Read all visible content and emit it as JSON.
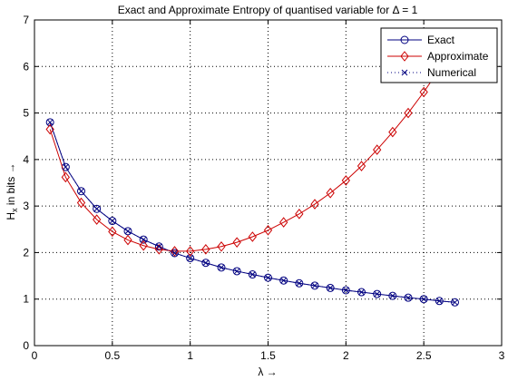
{
  "chart_data": {
    "type": "line",
    "title": "Exact and Approximate Entropy of quantised variable for Δ = 1",
    "xlabel": "λ →",
    "ylabel": "H_x in bits →",
    "ylabel_parts": {
      "main": "H",
      "sub": "x",
      "rest": " in bits →"
    },
    "xlim": [
      0,
      3
    ],
    "ylim": [
      0,
      7
    ],
    "xticks": [
      0,
      0.5,
      1,
      1.5,
      2,
      2.5,
      3
    ],
    "xtick_labels": [
      "0",
      "0.5",
      "1",
      "1.5",
      "2",
      "2.5",
      "3"
    ],
    "yticks": [
      0,
      1,
      2,
      3,
      4,
      5,
      6,
      7
    ],
    "ytick_labels": [
      "0",
      "1",
      "2",
      "3",
      "4",
      "5",
      "6",
      "7"
    ],
    "grid": true,
    "legend_position": "top-right",
    "x": [
      0.1,
      0.2,
      0.3,
      0.4,
      0.5,
      0.6,
      0.7,
      0.8,
      0.9,
      1.0,
      1.1,
      1.2,
      1.3,
      1.4,
      1.5,
      1.6,
      1.7,
      1.8,
      1.9,
      2.0,
      2.1,
      2.2,
      2.3,
      2.4,
      2.5,
      2.6,
      2.7
    ],
    "series": [
      {
        "name": "Exact",
        "color": "#000080",
        "marker": "circle",
        "linestyle": "solid",
        "values": [
          4.8,
          3.84,
          3.32,
          2.94,
          2.68,
          2.46,
          2.28,
          2.13,
          1.99,
          1.88,
          1.78,
          1.68,
          1.6,
          1.53,
          1.46,
          1.4,
          1.34,
          1.29,
          1.24,
          1.19,
          1.15,
          1.11,
          1.07,
          1.03,
          1.0,
          0.96,
          0.93
        ]
      },
      {
        "name": "Approximate",
        "color": "#cc0000",
        "marker": "diamond",
        "linestyle": "solid",
        "values": [
          4.65,
          3.62,
          3.07,
          2.71,
          2.45,
          2.27,
          2.15,
          2.07,
          2.03,
          2.03,
          2.07,
          2.13,
          2.22,
          2.34,
          2.48,
          2.65,
          2.83,
          3.04,
          3.28,
          3.55,
          3.86,
          4.21,
          4.59,
          5.0,
          5.45,
          5.94,
          6.46
        ]
      },
      {
        "name": "Numerical",
        "color": "#000080",
        "marker": "x",
        "linestyle": "dotted",
        "values": [
          4.8,
          3.84,
          3.32,
          2.94,
          2.68,
          2.46,
          2.28,
          2.13,
          1.99,
          1.88,
          1.78,
          1.68,
          1.6,
          1.53,
          1.46,
          1.4,
          1.34,
          1.29,
          1.24,
          1.19,
          1.15,
          1.11,
          1.07,
          1.03,
          1.0,
          0.96,
          0.93
        ]
      }
    ]
  }
}
